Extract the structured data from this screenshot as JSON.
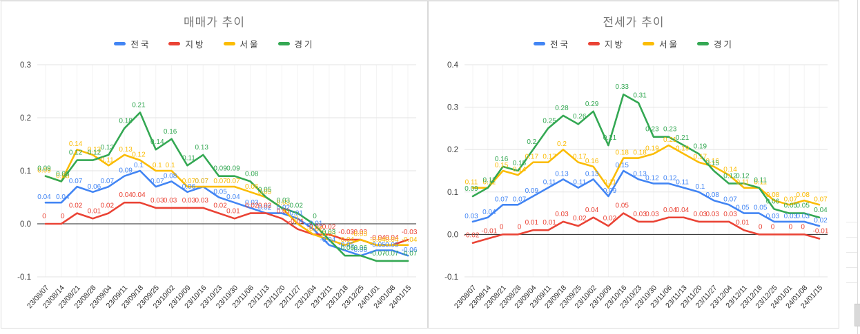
{
  "charts": [
    {
      "title": "매매가 추이",
      "legend": [
        {
          "label": "전국",
          "color": "#4285f4"
        },
        {
          "label": "지방",
          "color": "#ea4335"
        },
        {
          "label": "서울",
          "color": "#fbbc04"
        },
        {
          "label": "경기",
          "color": "#34a853"
        }
      ],
      "chart_data": {
        "type": "line",
        "title": "매매가 추이",
        "legend_position": "top",
        "grid": true,
        "ylim": [
          -0.1,
          0.3
        ],
        "yticks": [
          0.3,
          0.2,
          0.1,
          0.0,
          -0.1
        ],
        "x": [
          "23/08/07",
          "23/08/14",
          "23/08/21",
          "23/08/28",
          "23/09/04",
          "23/09/11",
          "23/09/18",
          "23/09/25",
          "23/10/02",
          "23/10/09",
          "23/10/16",
          "23/10/23",
          "23/10/30",
          "23/11/06",
          "23/11/13",
          "23/11/20",
          "23/11/27",
          "23/12/04",
          "23/12/11",
          "23/12/18",
          "23/12/25",
          "24/01/01",
          "24/01/08",
          "24/01/15"
        ],
        "series": [
          {
            "name": "전국",
            "color": "#4285f4",
            "values": [
              0.04,
              0.04,
              0.07,
              0.06,
              0.07,
              0.09,
              0.1,
              0.07,
              0.08,
              0.06,
              0.07,
              0.05,
              0.04,
              0.03,
              0.02,
              0.02,
              0.01,
              -0.01,
              -0.04,
              -0.05,
              -0.06,
              -0.05,
              -0.05,
              -0.06
            ]
          },
          {
            "name": "지방",
            "color": "#ea4335",
            "values": [
              0,
              0,
              0.02,
              0.01,
              0.02,
              0.04,
              0.04,
              0.03,
              0.03,
              0.03,
              0.03,
              0.02,
              0.01,
              0.02,
              0.02,
              0.01,
              -0.01,
              -0.02,
              -0.02,
              -0.03,
              -0.03,
              -0.04,
              -0.04,
              -0.03
            ]
          },
          {
            "name": "서울",
            "color": "#fbbc04",
            "values": [
              0.09,
              0.08,
              0.14,
              0.13,
              0.11,
              0.13,
              0.12,
              0.1,
              0.1,
              0.07,
              0.07,
              0.07,
              0.07,
              0.06,
              0.05,
              0.03,
              0,
              -0.02,
              -0.03,
              -0.04,
              -0.03,
              -0.04,
              -0.04,
              -0.04
            ]
          },
          {
            "name": "경기",
            "color": "#34a853",
            "values": [
              0.09,
              0.08,
              0.12,
              0.12,
              0.13,
              0.18,
              0.21,
              0.14,
              0.16,
              0.11,
              0.13,
              0.09,
              0.09,
              0.08,
              0.05,
              0.03,
              0.02,
              0,
              -0.03,
              -0.06,
              -0.06,
              -0.07,
              -0.07,
              -0.07
            ]
          }
        ]
      }
    },
    {
      "title": "전세가 추이",
      "legend": [
        {
          "label": "전국",
          "color": "#4285f4"
        },
        {
          "label": "지방",
          "color": "#ea4335"
        },
        {
          "label": "서울",
          "color": "#fbbc04"
        },
        {
          "label": "경기",
          "color": "#34a853"
        }
      ],
      "chart_data": {
        "type": "line",
        "title": "전세가 추이",
        "legend_position": "top",
        "grid": true,
        "ylim": [
          -0.1,
          0.4
        ],
        "yticks": [
          0.4,
          0.3,
          0.2,
          0.1,
          0.0,
          -0.1
        ],
        "x": [
          "23/08/07",
          "23/08/14",
          "23/08/21",
          "23/08/28",
          "23/09/04",
          "23/09/11",
          "23/09/18",
          "23/09/25",
          "23/10/02",
          "23/10/09",
          "23/10/16",
          "23/10/23",
          "23/10/30",
          "23/11/06",
          "23/11/13",
          "23/11/20",
          "23/11/27",
          "23/12/04",
          "23/12/11",
          "23/12/18",
          "23/12/25",
          "24/01/01",
          "24/01/08",
          "24/01/15"
        ],
        "series": [
          {
            "name": "전국",
            "color": "#4285f4",
            "values": [
              0.03,
              0.04,
              0.07,
              0.07,
              0.09,
              0.11,
              0.13,
              0.11,
              0.13,
              0.09,
              0.15,
              0.13,
              0.12,
              0.12,
              0.11,
              0.1,
              0.08,
              0.07,
              0.05,
              0.05,
              0.03,
              0.03,
              0.03,
              0.02
            ]
          },
          {
            "name": "지방",
            "color": "#ea4335",
            "values": [
              -0.02,
              -0.01,
              0,
              0,
              0.01,
              0.01,
              0.03,
              0.02,
              0.04,
              0.02,
              0.05,
              0.03,
              0.03,
              0.04,
              0.04,
              0.03,
              0.03,
              0.03,
              0.01,
              0,
              0,
              0,
              0,
              -0.01
            ]
          },
          {
            "name": "서울",
            "color": "#fbbc04",
            "values": [
              0.11,
              0.11,
              0.15,
              0.14,
              0.17,
              0.17,
              0.2,
              0.17,
              0.16,
              0.11,
              0.18,
              0.18,
              0.19,
              0.21,
              0.19,
              0.17,
              0.16,
              0.14,
              0.11,
              0.11,
              0.08,
              0.07,
              0.08,
              0.07
            ]
          },
          {
            "name": "경기",
            "color": "#34a853",
            "values": [
              0.09,
              0.11,
              0.16,
              0.15,
              0.2,
              0.25,
              0.28,
              0.26,
              0.29,
              0.21,
              0.33,
              0.31,
              0.23,
              0.23,
              0.21,
              0.19,
              0.15,
              0.12,
              0.12,
              0.11,
              0.06,
              0.05,
              0.05,
              0.04
            ]
          }
        ]
      }
    }
  ]
}
